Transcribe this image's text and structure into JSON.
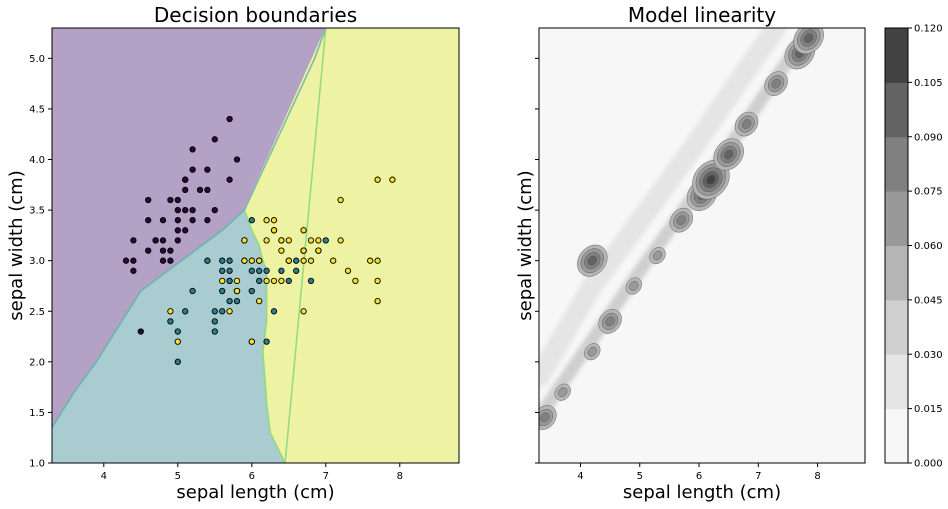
{
  "chart_data": [
    {
      "type": "scatter",
      "title": "Decision boundaries",
      "xlabel": "sepal length (cm)",
      "ylabel": "sepal width (cm)",
      "xlim": [
        3.3,
        8.8
      ],
      "ylim": [
        1.0,
        5.3
      ],
      "xticks": [
        "4",
        "5",
        "6",
        "7",
        "8"
      ],
      "yticks": [
        "1.0",
        "1.5",
        "2.0",
        "2.5",
        "3.0",
        "3.5",
        "4.0",
        "4.5",
        "5.0"
      ],
      "regions": [
        {
          "class": 0,
          "color": "#b3a1c6",
          "polygon": [
            [
              3.3,
              5.3
            ],
            [
              7.0,
              5.3
            ],
            [
              6.85,
              5.0
            ],
            [
              5.9,
              3.5
            ],
            [
              5.6,
              3.3
            ],
            [
              4.5,
              2.7
            ],
            [
              3.9,
              2.0
            ],
            [
              3.6,
              1.7
            ],
            [
              3.3,
              1.35
            ]
          ]
        },
        {
          "class": 1,
          "color": "#a8cccf",
          "polygon": [
            [
              3.3,
              1.0
            ],
            [
              6.45,
              1.0
            ],
            [
              6.25,
              1.3
            ],
            [
              6.2,
              1.6
            ],
            [
              6.15,
              2.1
            ],
            [
              6.2,
              2.4
            ],
            [
              6.2,
              2.9
            ],
            [
              6.15,
              3.0
            ],
            [
              6.1,
              3.15
            ],
            [
              6.0,
              3.3
            ],
            [
              5.9,
              3.5
            ],
            [
              5.6,
              3.3
            ],
            [
              4.5,
              2.7
            ],
            [
              3.9,
              2.0
            ],
            [
              3.6,
              1.7
            ],
            [
              3.3,
              1.35
            ]
          ]
        },
        {
          "class": 2,
          "color": "#eef2a3",
          "polygon": [
            [
              7.0,
              5.3
            ],
            [
              8.8,
              5.3
            ],
            [
              8.8,
              1.0
            ],
            [
              6.45,
              1.0
            ],
            [
              6.25,
              1.3
            ],
            [
              6.2,
              1.6
            ],
            [
              6.15,
              2.1
            ],
            [
              6.2,
              2.4
            ],
            [
              6.2,
              2.9
            ],
            [
              6.15,
              3.0
            ],
            [
              6.1,
              3.15
            ],
            [
              6.0,
              3.3
            ],
            [
              5.9,
              3.5
            ]
          ]
        }
      ],
      "series": [
        {
          "class": 0,
          "color": "#2b0a34",
          "points": [
            [
              5.1,
              3.5
            ],
            [
              4.9,
              3.0
            ],
            [
              4.7,
              3.2
            ],
            [
              4.6,
              3.1
            ],
            [
              5.0,
              3.6
            ],
            [
              5.4,
              3.9
            ],
            [
              4.6,
              3.4
            ],
            [
              5.0,
              3.4
            ],
            [
              4.4,
              2.9
            ],
            [
              4.9,
              3.1
            ],
            [
              5.4,
              3.7
            ],
            [
              4.8,
              3.4
            ],
            [
              4.8,
              3.0
            ],
            [
              4.3,
              3.0
            ],
            [
              5.8,
              4.0
            ],
            [
              5.7,
              4.4
            ],
            [
              5.1,
              3.8
            ],
            [
              5.7,
              3.8
            ],
            [
              5.4,
              3.4
            ],
            [
              5.1,
              3.7
            ],
            [
              4.6,
              3.6
            ],
            [
              5.1,
              3.3
            ],
            [
              4.8,
              3.1
            ],
            [
              5.2,
              3.5
            ],
            [
              5.2,
              3.4
            ],
            [
              4.7,
              3.2
            ],
            [
              5.5,
              4.2
            ],
            [
              5.2,
              4.1
            ],
            [
              5.5,
              3.5
            ],
            [
              4.4,
              3.0
            ],
            [
              5.0,
              3.5
            ],
            [
              4.5,
              2.3
            ],
            [
              4.4,
              3.2
            ],
            [
              5.1,
              3.8
            ],
            [
              5.0,
              3.3
            ],
            [
              5.3,
              3.7
            ],
            [
              4.9,
              3.6
            ],
            [
              5.2,
              3.9
            ],
            [
              4.8,
              3.2
            ],
            [
              5.0,
              3.2
            ]
          ]
        },
        {
          "class": 1,
          "color": "#2a7f8e",
          "points": [
            [
              7.0,
              3.2
            ],
            [
              6.4,
              3.2
            ],
            [
              6.9,
              3.1
            ],
            [
              5.5,
              2.3
            ],
            [
              6.5,
              2.8
            ],
            [
              5.7,
              2.8
            ],
            [
              6.3,
              3.3
            ],
            [
              4.9,
              2.4
            ],
            [
              6.6,
              2.9
            ],
            [
              5.2,
              2.7
            ],
            [
              5.0,
              2.0
            ],
            [
              5.9,
              3.0
            ],
            [
              6.0,
              2.2
            ],
            [
              6.1,
              2.9
            ],
            [
              5.6,
              2.9
            ],
            [
              6.7,
              3.1
            ],
            [
              5.6,
              3.0
            ],
            [
              5.8,
              2.7
            ],
            [
              6.2,
              2.2
            ],
            [
              5.6,
              2.5
            ],
            [
              5.9,
              3.2
            ],
            [
              6.1,
              2.8
            ],
            [
              6.3,
              2.5
            ],
            [
              6.4,
              2.9
            ],
            [
              6.6,
              3.0
            ],
            [
              6.8,
              2.8
            ],
            [
              6.0,
              2.9
            ],
            [
              5.7,
              2.6
            ],
            [
              5.5,
              2.4
            ],
            [
              5.8,
              2.7
            ],
            [
              6.0,
              2.7
            ],
            [
              5.4,
              3.0
            ],
            [
              6.0,
              3.4
            ],
            [
              6.7,
              3.1
            ],
            [
              5.5,
              2.5
            ],
            [
              6.1,
              3.0
            ],
            [
              5.8,
              2.6
            ],
            [
              5.0,
              2.3
            ],
            [
              5.6,
              2.7
            ],
            [
              5.7,
              3.0
            ],
            [
              5.7,
              2.9
            ],
            [
              6.2,
              2.9
            ],
            [
              5.1,
              2.5
            ],
            [
              5.7,
              2.8
            ]
          ]
        },
        {
          "class": 2,
          "color": "#f2e02a",
          "points": [
            [
              6.3,
              3.3
            ],
            [
              7.1,
              3.0
            ],
            [
              6.5,
              3.0
            ],
            [
              7.6,
              3.0
            ],
            [
              4.9,
              2.5
            ],
            [
              7.3,
              2.9
            ],
            [
              6.7,
              2.5
            ],
            [
              7.2,
              3.6
            ],
            [
              6.8,
              3.0
            ],
            [
              5.7,
              2.5
            ],
            [
              5.8,
              2.8
            ],
            [
              6.4,
              3.2
            ],
            [
              7.7,
              3.8
            ],
            [
              7.7,
              2.6
            ],
            [
              6.9,
              3.2
            ],
            [
              5.6,
              2.8
            ],
            [
              7.7,
              2.8
            ],
            [
              6.7,
              3.3
            ],
            [
              7.2,
              3.2
            ],
            [
              6.2,
              2.8
            ],
            [
              6.1,
              3.0
            ],
            [
              7.4,
              2.8
            ],
            [
              7.9,
              3.8
            ],
            [
              6.3,
              2.8
            ],
            [
              6.1,
              2.6
            ],
            [
              7.7,
              3.0
            ],
            [
              6.3,
              3.4
            ],
            [
              6.4,
              3.1
            ],
            [
              6.0,
              3.0
            ],
            [
              6.9,
              3.1
            ],
            [
              6.7,
              3.1
            ],
            [
              5.8,
              2.7
            ],
            [
              6.8,
              3.2
            ],
            [
              6.7,
              3.0
            ],
            [
              6.5,
              3.0
            ],
            [
              6.2,
              3.4
            ],
            [
              5.9,
              3.0
            ],
            [
              5.0,
              2.2
            ],
            [
              6.5,
              3.2
            ],
            [
              6.4,
              2.8
            ],
            [
              6.0,
              2.2
            ],
            [
              5.9,
              3.2
            ],
            [
              6.2,
              3.2
            ]
          ]
        }
      ]
    },
    {
      "type": "heatmap",
      "title": "Model linearity",
      "xlabel": "sepal length (cm)",
      "ylabel": "sepal width (cm)",
      "xlim": [
        3.3,
        8.8
      ],
      "ylim": [
        1.0,
        5.3
      ],
      "xticks": [
        "4",
        "5",
        "6",
        "7",
        "8"
      ],
      "contour_levels": [
        0.0,
        0.015,
        0.03,
        0.045,
        0.06,
        0.075,
        0.09,
        0.105,
        0.12
      ],
      "level_colors": [
        "#f7f7f7",
        "#e5e5e5",
        "#cfcfcf",
        "#b5b5b5",
        "#999999",
        "#808080",
        "#636363",
        "#434343"
      ],
      "colorbar_ticks": [
        "0.000",
        "0.015",
        "0.030",
        "0.045",
        "0.060",
        "0.075",
        "0.090",
        "0.105",
        "0.120"
      ],
      "bands": [
        {
          "level": 2,
          "width": 0.22,
          "path": [
            [
              3.3,
              1.45
            ],
            [
              4.0,
              2.05
            ],
            [
              5.0,
              2.9
            ],
            [
              5.8,
              3.55
            ],
            [
              6.3,
              3.95
            ],
            [
              7.0,
              4.55
            ],
            [
              7.7,
              5.15
            ],
            [
              7.9,
              5.3
            ]
          ]
        },
        {
          "level": 1,
          "width": 0.35,
          "path": [
            [
              3.3,
              1.85
            ],
            [
              4.2,
              2.75
            ],
            [
              5.2,
              3.55
            ],
            [
              6.0,
              4.2
            ],
            [
              6.7,
              4.8
            ],
            [
              7.3,
              5.3
            ]
          ]
        }
      ],
      "hotspots": [
        {
          "x": 3.4,
          "y": 1.45,
          "level": 5
        },
        {
          "x": 3.7,
          "y": 1.7,
          "level": 4
        },
        {
          "x": 4.2,
          "y": 2.1,
          "level": 4
        },
        {
          "x": 4.5,
          "y": 2.4,
          "level": 5
        },
        {
          "x": 4.9,
          "y": 2.75,
          "level": 4
        },
        {
          "x": 5.3,
          "y": 3.05,
          "level": 4
        },
        {
          "x": 5.7,
          "y": 3.4,
          "level": 5
        },
        {
          "x": 6.05,
          "y": 3.65,
          "level": 6
        },
        {
          "x": 6.2,
          "y": 3.8,
          "level": 7
        },
        {
          "x": 6.5,
          "y": 4.05,
          "level": 6
        },
        {
          "x": 6.8,
          "y": 4.35,
          "level": 5
        },
        {
          "x": 7.3,
          "y": 4.75,
          "level": 5
        },
        {
          "x": 7.7,
          "y": 5.05,
          "level": 6
        },
        {
          "x": 7.85,
          "y": 5.2,
          "level": 6
        },
        {
          "x": 4.2,
          "y": 3.0,
          "level": 6
        }
      ]
    }
  ]
}
